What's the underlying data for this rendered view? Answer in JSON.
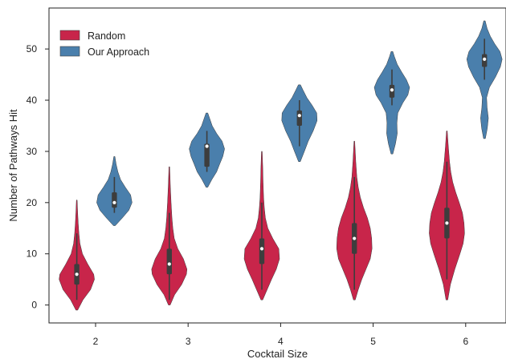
{
  "chart_data": {
    "type": "violin",
    "xlabel": "Cocktail Size",
    "ylabel": "Number of Pathways Hit",
    "categories": [
      "2",
      "3",
      "4",
      "5",
      "6"
    ],
    "ylim": [
      -3.5,
      58
    ],
    "yticks": [
      0,
      10,
      20,
      30,
      40,
      50
    ],
    "grid": false,
    "legend_position": "top-left",
    "series": [
      {
        "name": "Random",
        "color": "#C8254A",
        "violins": [
          {
            "category": "2",
            "min": -1,
            "max": 20.5,
            "q1": 4,
            "median": 6,
            "q3": 8,
            "whisker_low": 1,
            "whisker_high": 14,
            "profile": [
              [
                -1,
                0.05
              ],
              [
                1,
                0.35
              ],
              [
                3,
                0.78
              ],
              [
                5,
                1.0
              ],
              [
                6,
                0.96
              ],
              [
                8,
                0.62
              ],
              [
                10,
                0.32
              ],
              [
                12,
                0.18
              ],
              [
                14,
                0.12
              ],
              [
                16,
                0.08
              ],
              [
                18,
                0.05
              ],
              [
                20.5,
                0.02
              ]
            ]
          },
          {
            "category": "3",
            "min": 0,
            "max": 27,
            "q1": 6,
            "median": 8,
            "q3": 11,
            "whisker_low": 1,
            "whisker_high": 18,
            "profile": [
              [
                0,
                0.05
              ],
              [
                2,
                0.3
              ],
              [
                4,
                0.7
              ],
              [
                6,
                0.97
              ],
              [
                7,
                1.0
              ],
              [
                9,
                0.8
              ],
              [
                11,
                0.48
              ],
              [
                13,
                0.28
              ],
              [
                15,
                0.2
              ],
              [
                17,
                0.15
              ],
              [
                20,
                0.1
              ],
              [
                23,
                0.06
              ],
              [
                27,
                0.02
              ]
            ]
          },
          {
            "category": "4",
            "min": 1,
            "max": 30,
            "q1": 8,
            "median": 11,
            "q3": 13,
            "whisker_low": 3,
            "whisker_high": 20,
            "profile": [
              [
                1,
                0.05
              ],
              [
                3,
                0.3
              ],
              [
                5,
                0.55
              ],
              [
                7,
                0.82
              ],
              [
                9,
                1.0
              ],
              [
                11,
                0.96
              ],
              [
                13,
                0.62
              ],
              [
                15,
                0.34
              ],
              [
                17,
                0.2
              ],
              [
                19,
                0.14
              ],
              [
                21,
                0.1
              ],
              [
                24,
                0.07
              ],
              [
                27,
                0.05
              ],
              [
                30,
                0.02
              ]
            ]
          },
          {
            "category": "5",
            "min": 1,
            "max": 32,
            "q1": 10,
            "median": 13,
            "q3": 16,
            "whisker_low": 3,
            "whisker_high": 25,
            "profile": [
              [
                1,
                0.05
              ],
              [
                3,
                0.22
              ],
              [
                5,
                0.42
              ],
              [
                7,
                0.66
              ],
              [
                9,
                0.9
              ],
              [
                11,
                1.0
              ],
              [
                13,
                0.98
              ],
              [
                15,
                0.9
              ],
              [
                17,
                0.74
              ],
              [
                19,
                0.52
              ],
              [
                21,
                0.34
              ],
              [
                23,
                0.22
              ],
              [
                25,
                0.14
              ],
              [
                28,
                0.08
              ],
              [
                32,
                0.02
              ]
            ]
          },
          {
            "category": "6",
            "min": 1,
            "max": 34,
            "q1": 13,
            "median": 16,
            "q3": 19,
            "whisker_low": 5,
            "whisker_high": 28,
            "profile": [
              [
                1,
                0.05
              ],
              [
                4,
                0.2
              ],
              [
                7,
                0.45
              ],
              [
                10,
                0.74
              ],
              [
                12,
                0.92
              ],
              [
                14,
                1.0
              ],
              [
                16,
                0.97
              ],
              [
                18,
                0.88
              ],
              [
                20,
                0.7
              ],
              [
                22,
                0.5
              ],
              [
                24,
                0.33
              ],
              [
                26,
                0.22
              ],
              [
                28,
                0.15
              ],
              [
                31,
                0.08
              ],
              [
                34,
                0.02
              ]
            ]
          }
        ]
      },
      {
        "name": "Our Approach",
        "color": "#4A7FAC",
        "violins": [
          {
            "category": "2",
            "min": 15.5,
            "max": 29,
            "q1": 19,
            "median": 20,
            "q3": 22,
            "whisker_low": 18,
            "whisker_high": 25,
            "profile": [
              [
                15.5,
                0.05
              ],
              [
                17,
                0.45
              ],
              [
                18.5,
                0.82
              ],
              [
                20,
                1.0
              ],
              [
                21.5,
                0.92
              ],
              [
                23,
                0.62
              ],
              [
                24.5,
                0.35
              ],
              [
                26,
                0.2
              ],
              [
                27.5,
                0.1
              ],
              [
                29,
                0.03
              ]
            ]
          },
          {
            "category": "3",
            "min": 23,
            "max": 37.5,
            "q1": 27,
            "median": 31,
            "q3": 31.5,
            "whisker_low": 26,
            "whisker_high": 34,
            "profile": [
              [
                23,
                0.05
              ],
              [
                24.5,
                0.28
              ],
              [
                26,
                0.55
              ],
              [
                27.5,
                0.72
              ],
              [
                29,
                0.9
              ],
              [
                30.5,
                1.0
              ],
              [
                32,
                0.86
              ],
              [
                33.5,
                0.55
              ],
              [
                35,
                0.3
              ],
              [
                36.5,
                0.15
              ],
              [
                37.5,
                0.05
              ]
            ]
          },
          {
            "category": "4",
            "min": 28,
            "max": 43,
            "q1": 35,
            "median": 37,
            "q3": 38,
            "whisker_low": 31,
            "whisker_high": 40,
            "profile": [
              [
                28,
                0.05
              ],
              [
                30,
                0.28
              ],
              [
                32,
                0.5
              ],
              [
                34,
                0.78
              ],
              [
                36,
                1.0
              ],
              [
                37.5,
                0.98
              ],
              [
                39,
                0.72
              ],
              [
                40.5,
                0.42
              ],
              [
                42,
                0.2
              ],
              [
                43,
                0.06
              ]
            ]
          },
          {
            "category": "5",
            "min": 29.5,
            "max": 49.5,
            "q1": 40.5,
            "median": 42,
            "q3": 43,
            "whisker_low": 39,
            "whisker_high": 46,
            "profile": [
              [
                29.5,
                0.05
              ],
              [
                31.5,
                0.2
              ],
              [
                33.5,
                0.3
              ],
              [
                35.5,
                0.28
              ],
              [
                37.5,
                0.33
              ],
              [
                39.5,
                0.62
              ],
              [
                41,
                0.9
              ],
              [
                42.5,
                1.0
              ],
              [
                44,
                0.82
              ],
              [
                45.5,
                0.55
              ],
              [
                47,
                0.3
              ],
              [
                48.5,
                0.14
              ],
              [
                49.5,
                0.05
              ]
            ]
          },
          {
            "category": "6",
            "min": 32.5,
            "max": 55.5,
            "q1": 46.5,
            "median": 48,
            "q3": 49,
            "whisker_low": 44,
            "whisker_high": 52,
            "profile": [
              [
                32.5,
                0.05
              ],
              [
                34.5,
                0.16
              ],
              [
                36.5,
                0.22
              ],
              [
                38.5,
                0.15
              ],
              [
                40.5,
                0.12
              ],
              [
                42.5,
                0.28
              ],
              [
                44.5,
                0.62
              ],
              [
                46.5,
                0.9
              ],
              [
                48,
                1.0
              ],
              [
                49.5,
                0.88
              ],
              [
                51,
                0.58
              ],
              [
                52.5,
                0.33
              ],
              [
                54,
                0.15
              ],
              [
                55.5,
                0.04
              ]
            ]
          }
        ]
      }
    ]
  }
}
